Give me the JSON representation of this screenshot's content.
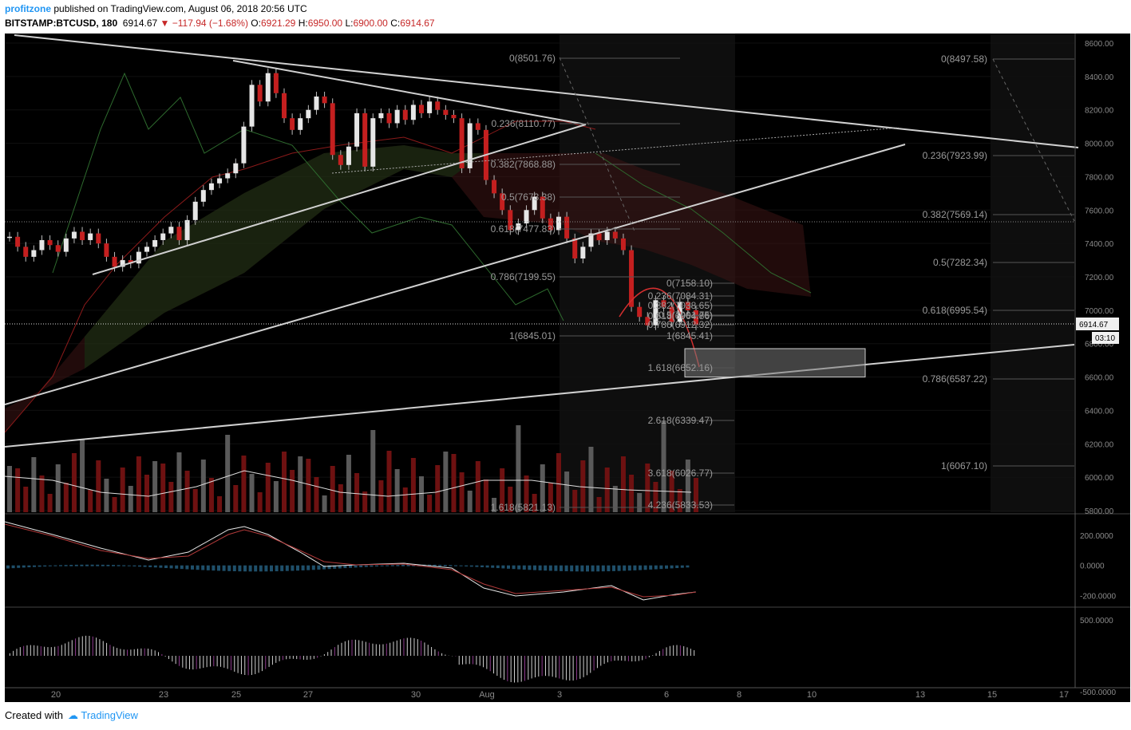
{
  "header": {
    "author": "profitzone",
    "published_text": "published on TradingView.com, August 06, 2018 20:56 UTC",
    "symbol": "BITSTAMP:BTCUSD, 180",
    "last": "6914.67",
    "change": "−117.94 (−1.68%)",
    "open_label": "O:",
    "open": "6921.29",
    "high_label": "H:",
    "high": "6950.00",
    "low_label": "L:",
    "low": "6900.00",
    "close_label": "C:",
    "close": "6914.67"
  },
  "footer": {
    "created_with": "Created with",
    "brand": "TradingView"
  },
  "colors": {
    "up": "#e6e6e6",
    "down": "#8b1a1a",
    "background": "#000000",
    "accent": "#2196f3"
  },
  "chart_data": {
    "type": "candlestick",
    "price_axis": {
      "ticks": [
        "8600.00",
        "8400.00",
        "8200.00",
        "8000.00",
        "7800.00",
        "7600.00",
        "7400.00",
        "7200.00",
        "7000.00",
        "6800.00",
        "6600.00",
        "6400.00",
        "6200.00",
        "6000.00",
        "5800.00"
      ],
      "ylim": [
        5800,
        8600
      ],
      "last_price_tag": "6914.67",
      "countdown_tag": "03:10"
    },
    "time_axis": {
      "labels": [
        "20",
        "23",
        "25",
        "27",
        "30",
        "Aug",
        "3",
        "6",
        "8",
        "10",
        "13",
        "15",
        "17"
      ]
    },
    "closes": [
      7440,
      7380,
      7320,
      7360,
      7420,
      7390,
      7350,
      7430,
      7470,
      7420,
      7460,
      7400,
      7320,
      7260,
      7300,
      7280,
      7350,
      7380,
      7420,
      7460,
      7500,
      7420,
      7540,
      7650,
      7720,
      7760,
      7790,
      7820,
      7880,
      8100,
      8350,
      8250,
      8420,
      8300,
      8150,
      8080,
      8150,
      8200,
      8280,
      8240,
      7930,
      7870,
      7980,
      8180,
      7860,
      8150,
      8180,
      8120,
      8200,
      8140,
      8230,
      8180,
      8250,
      8200,
      8170,
      8150,
      7850,
      8120,
      8080,
      7780,
      7700,
      7600,
      7480,
      7520,
      7600,
      7680,
      7550,
      7480,
      7560,
      7430,
      7310,
      7380,
      7460,
      7420,
      7470,
      7430,
      7360,
      7020,
      6960,
      6910,
      7060,
      7020,
      6930,
      7050,
      7000,
      6910
    ],
    "fib_left": [
      {
        "label": "0(8501.76)"
      },
      {
        "label": "0.236(8110.77)"
      },
      {
        "label": "0.382(7868.88)"
      },
      {
        "label": "0.5(7673.38)"
      },
      {
        "label": "0.618(7477.83)"
      },
      {
        "label": "0.786(7199.55)"
      },
      {
        "label": "1(6845.01)"
      },
      {
        "label": "1.618(5821.13)"
      }
    ],
    "fib_small": [
      {
        "label": "0(7158.10)"
      },
      {
        "label": "0.236(7084.31)"
      },
      {
        "label": "0.382(7038.65)"
      },
      {
        "label": "0.5(7001.75)"
      },
      {
        "label": "0.618(6964.86)"
      },
      {
        "label": "0.786(6912.32)"
      },
      {
        "label": "1(6845.41)"
      },
      {
        "label": "1.618(6652.16)"
      },
      {
        "label": "2.618(6339.47)"
      },
      {
        "label": "3.618(6026.77)"
      },
      {
        "label": "4.236(5833.53)"
      }
    ],
    "fib_right": [
      {
        "label": "0(8497.58)"
      },
      {
        "label": "0.236(7923.99)"
      },
      {
        "label": "0.382(7569.14)"
      },
      {
        "label": "0.5(7282.34)"
      },
      {
        "label": "0.618(6995.54)"
      },
      {
        "label": "0.786(6587.22)"
      },
      {
        "label": "1(6067.10)"
      }
    ],
    "target_zone": [
      6600,
      6770
    ],
    "oscillator1": {
      "ticks": [
        "200.0000",
        "0.0000",
        "-200.0000"
      ],
      "ylim": [
        -260,
        320
      ]
    },
    "oscillator2": {
      "ticks": [
        "500.0000",
        "-500.0000"
      ],
      "ylim": [
        -620,
        620
      ]
    }
  }
}
